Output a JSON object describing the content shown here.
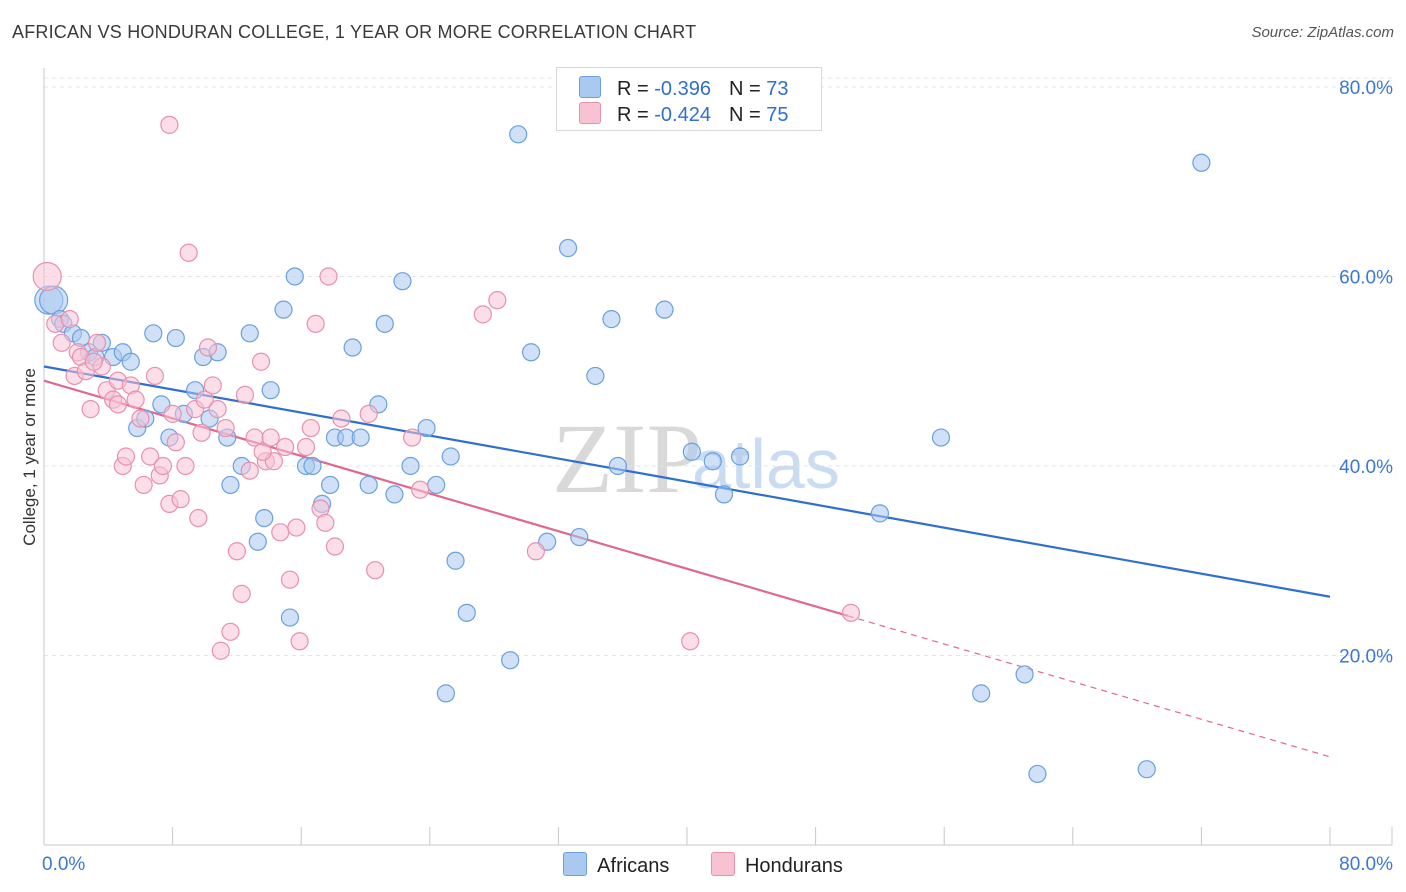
{
  "header": {
    "title": "AFRICAN VS HONDURAN COLLEGE, 1 YEAR OR MORE CORRELATION CHART",
    "source": "Source: ZipAtlas.com"
  },
  "watermark": {
    "zip": "ZIP",
    "atlas": "atlas"
  },
  "legend": {
    "r_label": "R =",
    "n_label": "N =",
    "rows": [
      {
        "r": "-0.396",
        "n": "73",
        "color": "#a9c9f0",
        "border": "#6a9fe0"
      },
      {
        "r": "-0.424",
        "n": "75",
        "color": "#f7c3d3",
        "border": "#e890ad"
      }
    ]
  },
  "chart_data": {
    "type": "scatter",
    "title": "AFRICAN VS HONDURAN COLLEGE, 1 YEAR OR MORE CORRELATION CHART",
    "xlabel": "",
    "ylabel": "College, 1 year or more",
    "xlim": [
      0,
      80
    ],
    "ylim": [
      0,
      82
    ],
    "x_tick_labels": [
      "0.0%",
      "80.0%"
    ],
    "y_ticks": [
      20,
      40,
      60,
      80
    ],
    "y_tick_labels": [
      "20.0%",
      "40.0%",
      "60.0%",
      "80.0%"
    ],
    "grid": true,
    "series": [
      {
        "name": "Africans",
        "color": "#6a9fe0",
        "fill": "#a9c9f0",
        "line_color": "#2f6fd0",
        "r": -0.396,
        "n": 73,
        "trend": {
          "x0": 0,
          "y0": 50.5,
          "x1": 80,
          "y1": 26.2,
          "dashed_from": null
        },
        "points": [
          [
            0.3,
            57.5
          ],
          [
            0.6,
            57.5
          ],
          [
            1.0,
            55.5
          ],
          [
            1.2,
            55.0
          ],
          [
            1.8,
            54.0
          ],
          [
            2.3,
            53.5
          ],
          [
            2.8,
            52.0
          ],
          [
            3.2,
            51.5
          ],
          [
            3.6,
            53.0
          ],
          [
            4.3,
            51.5
          ],
          [
            4.9,
            52.0
          ],
          [
            5.4,
            51.0
          ],
          [
            5.8,
            44.0
          ],
          [
            6.3,
            45.0
          ],
          [
            6.8,
            54.0
          ],
          [
            7.3,
            46.5
          ],
          [
            7.8,
            43.0
          ],
          [
            8.2,
            53.5
          ],
          [
            8.7,
            45.5
          ],
          [
            9.4,
            48.0
          ],
          [
            9.9,
            51.5
          ],
          [
            10.3,
            45.0
          ],
          [
            10.8,
            52.0
          ],
          [
            11.4,
            43.0
          ],
          [
            11.6,
            38.0
          ],
          [
            12.3,
            40.0
          ],
          [
            12.8,
            54.0
          ],
          [
            13.3,
            32.0
          ],
          [
            13.7,
            34.5
          ],
          [
            14.1,
            48.0
          ],
          [
            14.9,
            56.5
          ],
          [
            15.3,
            24.0
          ],
          [
            15.6,
            60.0
          ],
          [
            16.3,
            40.0
          ],
          [
            16.7,
            40.0
          ],
          [
            17.3,
            36.0
          ],
          [
            17.8,
            38.0
          ],
          [
            18.1,
            43.0
          ],
          [
            18.8,
            43.0
          ],
          [
            19.2,
            52.5
          ],
          [
            19.7,
            43.0
          ],
          [
            20.2,
            38.0
          ],
          [
            20.8,
            46.5
          ],
          [
            21.2,
            55.0
          ],
          [
            21.8,
            37.0
          ],
          [
            22.3,
            59.5
          ],
          [
            22.8,
            40.0
          ],
          [
            23.8,
            44.0
          ],
          [
            24.4,
            38.0
          ],
          [
            25.0,
            16.0
          ],
          [
            25.3,
            41.0
          ],
          [
            25.6,
            30.0
          ],
          [
            26.3,
            24.5
          ],
          [
            29.0,
            19.5
          ],
          [
            29.5,
            75.0
          ],
          [
            30.3,
            52.0
          ],
          [
            31.3,
            32.0
          ],
          [
            32.6,
            63.0
          ],
          [
            33.3,
            32.5
          ],
          [
            34.3,
            49.5
          ],
          [
            35.3,
            55.5
          ],
          [
            35.7,
            40.0
          ],
          [
            38.6,
            56.5
          ],
          [
            40.3,
            41.5
          ],
          [
            41.6,
            40.5
          ],
          [
            42.3,
            37.0
          ],
          [
            43.3,
            41.0
          ],
          [
            52.0,
            35.0
          ],
          [
            55.8,
            43.0
          ],
          [
            58.3,
            16.0
          ],
          [
            61.0,
            18.0
          ],
          [
            61.8,
            7.5
          ],
          [
            68.6,
            8.0
          ],
          [
            72.0,
            72.0
          ]
        ]
      },
      {
        "name": "Hondurans",
        "color": "#e890ad",
        "fill": "#f7c3d3",
        "line_color": "#e0688f",
        "r": -0.424,
        "n": 75,
        "trend": {
          "x0": 0,
          "y0": 49.0,
          "x1": 80,
          "y1": 9.3,
          "dashed_from": 50.0
        },
        "points": [
          [
            0.2,
            60.0
          ],
          [
            0.7,
            55.0
          ],
          [
            1.1,
            53.0
          ],
          [
            1.6,
            55.5
          ],
          [
            1.9,
            49.5
          ],
          [
            2.1,
            52.0
          ],
          [
            2.3,
            51.5
          ],
          [
            2.6,
            50.0
          ],
          [
            2.9,
            46.0
          ],
          [
            3.3,
            53.0
          ],
          [
            3.6,
            50.5
          ],
          [
            3.9,
            48.0
          ],
          [
            4.3,
            47.0
          ],
          [
            4.6,
            49.0
          ],
          [
            4.9,
            40.0
          ],
          [
            5.1,
            41.0
          ],
          [
            5.4,
            48.5
          ],
          [
            5.7,
            47.0
          ],
          [
            6.0,
            45.0
          ],
          [
            6.2,
            38.0
          ],
          [
            6.6,
            41.0
          ],
          [
            6.9,
            49.5
          ],
          [
            7.2,
            39.0
          ],
          [
            7.4,
            40.0
          ],
          [
            7.8,
            36.0
          ],
          [
            8.0,
            45.5
          ],
          [
            8.2,
            42.5
          ],
          [
            8.5,
            36.5
          ],
          [
            7.8,
            76.0
          ],
          [
            8.8,
            40.0
          ],
          [
            9.0,
            62.5
          ],
          [
            9.4,
            46.0
          ],
          [
            9.6,
            34.5
          ],
          [
            10.0,
            47.0
          ],
          [
            10.2,
            52.5
          ],
          [
            10.5,
            48.5
          ],
          [
            10.8,
            46.0
          ],
          [
            11.0,
            20.5
          ],
          [
            11.3,
            44.0
          ],
          [
            11.6,
            22.5
          ],
          [
            12.0,
            31.0
          ],
          [
            12.3,
            26.5
          ],
          [
            12.5,
            47.5
          ],
          [
            12.8,
            39.5
          ],
          [
            13.1,
            43.0
          ],
          [
            13.5,
            51.0
          ],
          [
            13.8,
            40.5
          ],
          [
            14.1,
            43.0
          ],
          [
            14.3,
            40.5
          ],
          [
            14.7,
            33.0
          ],
          [
            15.0,
            42.0
          ],
          [
            15.3,
            28.0
          ],
          [
            15.7,
            33.5
          ],
          [
            15.9,
            21.5
          ],
          [
            16.3,
            42.0
          ],
          [
            16.6,
            44.0
          ],
          [
            16.9,
            55.0
          ],
          [
            17.2,
            35.5
          ],
          [
            17.5,
            34.0
          ],
          [
            17.7,
            60.0
          ],
          [
            18.1,
            31.5
          ],
          [
            18.5,
            45.0
          ],
          [
            20.2,
            45.5
          ],
          [
            20.6,
            29.0
          ],
          [
            22.9,
            43.0
          ],
          [
            23.4,
            37.5
          ],
          [
            27.3,
            56.0
          ],
          [
            28.2,
            57.5
          ],
          [
            30.6,
            31.0
          ],
          [
            40.2,
            21.5
          ],
          [
            50.2,
            24.5
          ],
          [
            4.6,
            46.5
          ],
          [
            9.8,
            43.5
          ],
          [
            13.6,
            41.5
          ],
          [
            3.1,
            51.0
          ]
        ]
      }
    ]
  }
}
